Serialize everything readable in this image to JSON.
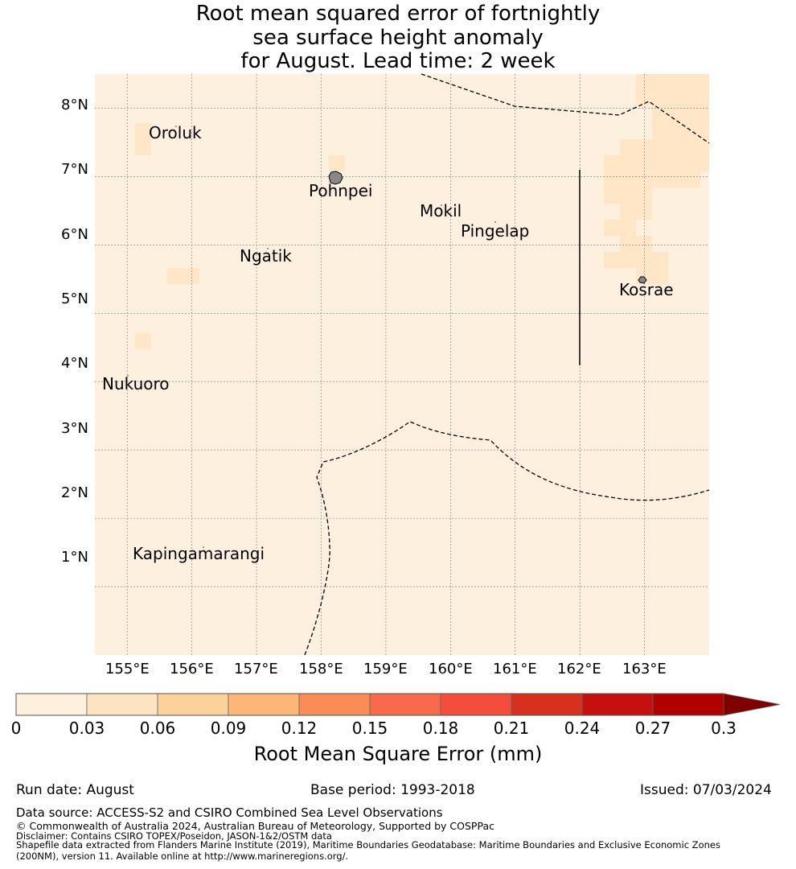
{
  "title": {
    "line1": "Root mean squared error of fortnightly",
    "line2": "sea surface height anomaly",
    "line3": "for August. Lead time: 2 week"
  },
  "map": {
    "lon_ticks": [
      "155°E",
      "156°E",
      "157°E",
      "158°E",
      "159°E",
      "160°E",
      "161°E",
      "162°E",
      "163°E"
    ],
    "lat_ticks": [
      "8°N",
      "7°N",
      "6°N",
      "5°N",
      "4°N",
      "3°N",
      "2°N",
      "1°N"
    ],
    "lon_range": [
      154.5,
      164.0
    ],
    "lat_range": [
      0.0,
      8.5
    ],
    "background_color": "#fef0de",
    "highlight_color": "#fee6c6",
    "places": {
      "oroluk": "Oroluk",
      "pohnpei": "Pohnpei",
      "mokil": "Mokil",
      "pingelap": "Pingelap",
      "ngatik": "Ngatik",
      "kosrae": "Kosrae",
      "nukuoro": "Nukuoro",
      "kapingamarangi": "Kapingamarangi"
    }
  },
  "colorbar": {
    "ticks": [
      "0",
      "0.03",
      "0.06",
      "0.09",
      "0.12",
      "0.15",
      "0.18",
      "0.21",
      "0.24",
      "0.27",
      "0.3"
    ],
    "colors": [
      "#fff0dd",
      "#fee3c1",
      "#fdd19a",
      "#fdb678",
      "#fc8c55",
      "#f9694c",
      "#f44d3e",
      "#d7301f",
      "#c5100f",
      "#b10000"
    ],
    "extend_color": "#7f0000",
    "label": "Root Mean Square Error (mm)"
  },
  "footer": {
    "run_date": "Run date: August",
    "base_period": "Base period: 1993-2018",
    "issued": "Issued: 07/03/2024",
    "data_source": "Data source: ACCESS-S2 and CSIRO Combined Sea Level Observations",
    "copyright": "© Commonwealth of Australia 2024, Australian Bureau of Meteorology, Supported by COSPPac",
    "disclaimer": "Disclaimer: Contains CSIRO TOPEX/Poseidon, JASON-1&2/OSTM data",
    "shapefile_line1": "Shapefile data extracted from Flanders Marine Institute (2019), Maritime Boundaries Geodatabase: Maritime Boundaries and Exclusive Economic Zones",
    "shapefile_line2": "(200NM), version 11. Available online at http://www.marineregions.org/."
  }
}
